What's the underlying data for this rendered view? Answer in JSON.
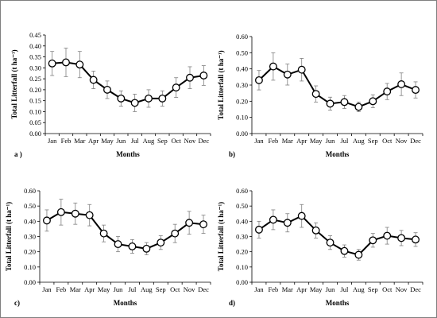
{
  "chart_data": [
    {
      "type": "line",
      "panel_label": "a )",
      "xlabel": "Months",
      "ylabel": "Total Litterfall (t ha⁻¹)",
      "categories": [
        "Jan",
        "Feb",
        "Mar",
        "Apr",
        "May",
        "Jun",
        "Jul",
        "Aug",
        "Sep",
        "Oct",
        "Nov",
        "Dec"
      ],
      "values": [
        0.32,
        0.325,
        0.315,
        0.245,
        0.2,
        0.16,
        0.14,
        0.16,
        0.16,
        0.21,
        0.255,
        0.265
      ],
      "errors": [
        0.055,
        0.065,
        0.06,
        0.04,
        0.04,
        0.035,
        0.04,
        0.04,
        0.035,
        0.045,
        0.05,
        0.045
      ],
      "ylim": [
        0,
        0.45
      ],
      "yticks": [
        "0.00",
        "0.05",
        "0.10",
        "0.15",
        "0.20",
        "0.25",
        "0.30",
        "0.35",
        "0.40",
        "0.45"
      ],
      "grid": false,
      "legend": "none",
      "colors": {
        "line": "#000000",
        "marker_face": "#ffffff",
        "error_bar": "#7f7f7f"
      }
    },
    {
      "type": "line",
      "panel_label": "b)",
      "xlabel": "Months",
      "ylabel": "Total Litterfall (t ha⁻¹)",
      "categories": [
        "Jan",
        "Feb",
        "Mar",
        "Apr",
        "May",
        "Jun",
        "Jul",
        "Aug",
        "Sep",
        "Oct",
        "Nov",
        "Dec"
      ],
      "values": [
        0.33,
        0.415,
        0.365,
        0.395,
        0.245,
        0.185,
        0.195,
        0.165,
        0.2,
        0.26,
        0.305,
        0.27
      ],
      "errors": [
        0.06,
        0.085,
        0.065,
        0.07,
        0.05,
        0.04,
        0.04,
        0.03,
        0.04,
        0.05,
        0.07,
        0.05
      ],
      "ylim": [
        0,
        0.6
      ],
      "yticks": [
        "0.00",
        "0.10",
        "0.20",
        "0.30",
        "0.40",
        "0.50",
        "0.60"
      ],
      "grid": false,
      "legend": "none",
      "colors": {
        "line": "#000000",
        "marker_face": "#ffffff",
        "error_bar": "#7f7f7f"
      }
    },
    {
      "type": "line",
      "panel_label": "c)",
      "xlabel": "Months",
      "ylabel": "Total Litterfall (t ha⁻¹)",
      "categories": [
        "Jan",
        "Feb",
        "Mar",
        "Apr",
        "May",
        "Jun",
        "Jul",
        "Aug",
        "Sep",
        "Oct",
        "Nov",
        "Dec"
      ],
      "values": [
        0.405,
        0.46,
        0.45,
        0.44,
        0.32,
        0.25,
        0.235,
        0.22,
        0.26,
        0.32,
        0.39,
        0.38
      ],
      "errors": [
        0.07,
        0.085,
        0.07,
        0.07,
        0.055,
        0.05,
        0.045,
        0.04,
        0.045,
        0.06,
        0.075,
        0.06
      ],
      "ylim": [
        0,
        0.6
      ],
      "yticks": [
        "0.00",
        "0.10",
        "0.20",
        "0.30",
        "0.40",
        "0.50",
        "0.60"
      ],
      "grid": false,
      "legend": "none",
      "colors": {
        "line": "#000000",
        "marker_face": "#ffffff",
        "error_bar": "#7f7f7f"
      }
    },
    {
      "type": "line",
      "panel_label": "d)",
      "xlabel": "Months",
      "ylabel": "Total Litterfall (t ha⁻¹)",
      "categories": [
        "Jan",
        "Feb",
        "Mar",
        "Apr",
        "May",
        "Jun",
        "Jul",
        "Aug",
        "Sep",
        "Oct",
        "Nov",
        "Dec"
      ],
      "values": [
        0.345,
        0.41,
        0.39,
        0.435,
        0.34,
        0.26,
        0.205,
        0.18,
        0.275,
        0.305,
        0.29,
        0.28
      ],
      "errors": [
        0.055,
        0.065,
        0.06,
        0.075,
        0.05,
        0.045,
        0.04,
        0.035,
        0.045,
        0.055,
        0.05,
        0.045
      ],
      "ylim": [
        0,
        0.6
      ],
      "yticks": [
        "0.00",
        "0.10",
        "0.20",
        "0.30",
        "0.40",
        "0.50",
        "0.60"
      ],
      "grid": false,
      "legend": "none",
      "colors": {
        "line": "#000000",
        "marker_face": "#ffffff",
        "error_bar": "#7f7f7f"
      }
    }
  ]
}
